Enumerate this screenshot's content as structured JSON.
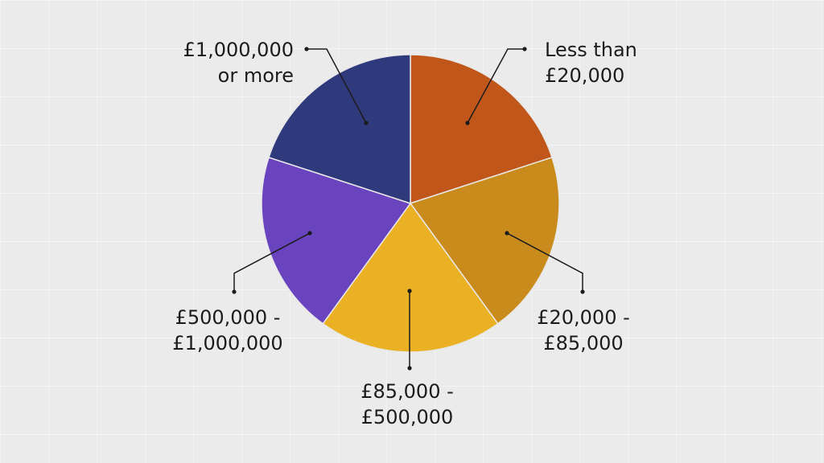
{
  "chart_data": {
    "type": "pie",
    "categories": [
      "Less than £20,000",
      "£20,000 - £85,000",
      "£85,000 - £500,000",
      "£500,000 - £1,000,000",
      "£1,000,000 or more"
    ],
    "values": [
      20,
      20,
      20,
      20,
      20
    ],
    "label_lines": [
      [
        "Less than",
        "£20,000"
      ],
      [
        "£20,000 -",
        "£85,000"
      ],
      [
        "£85,000 -",
        "£500,000"
      ],
      [
        "£500,000 -",
        "£1,000,000"
      ],
      [
        "£1,000,000",
        "or more"
      ]
    ],
    "colors": [
      "#c0561a",
      "#c98c1c",
      "#eab124",
      "#6a43bf",
      "#2f3a7d"
    ],
    "start_angle_deg": 0,
    "direction": "clockwise",
    "legend": "none",
    "title": ""
  }
}
